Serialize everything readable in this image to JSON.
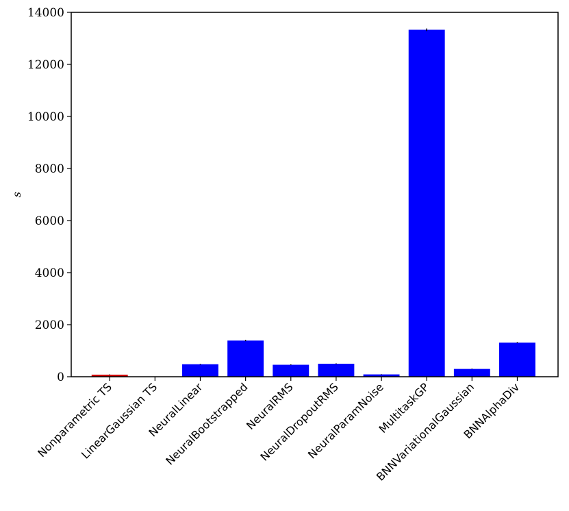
{
  "chart_data": {
    "type": "bar",
    "title": "",
    "xlabel": "",
    "ylabel": "s",
    "ylim": [
      0,
      14000
    ],
    "yticks": [
      0,
      2000,
      4000,
      6000,
      8000,
      10000,
      12000,
      14000
    ],
    "grid": false,
    "categories": [
      "Nonparametric TS",
      "LinearGaussian TS",
      "NeuralLinear",
      "NeuralBootstrapped",
      "NeuralRMS",
      "NeuralDropoutRMS",
      "NeuralParamNoise",
      "MultitaskGP",
      "BNNVariationalGaussian",
      "BNNAlphaDiv"
    ],
    "values": [
      80,
      5,
      480,
      1390,
      460,
      500,
      90,
      13330,
      300,
      1310
    ],
    "errors": [
      10,
      2,
      15,
      25,
      15,
      15,
      8,
      50,
      12,
      20
    ],
    "colors": [
      "#cc0000",
      "#0000ff",
      "#0000ff",
      "#0000ff",
      "#0000ff",
      "#0000ff",
      "#0000ff",
      "#0000ff",
      "#0000ff",
      "#0000ff"
    ]
  }
}
